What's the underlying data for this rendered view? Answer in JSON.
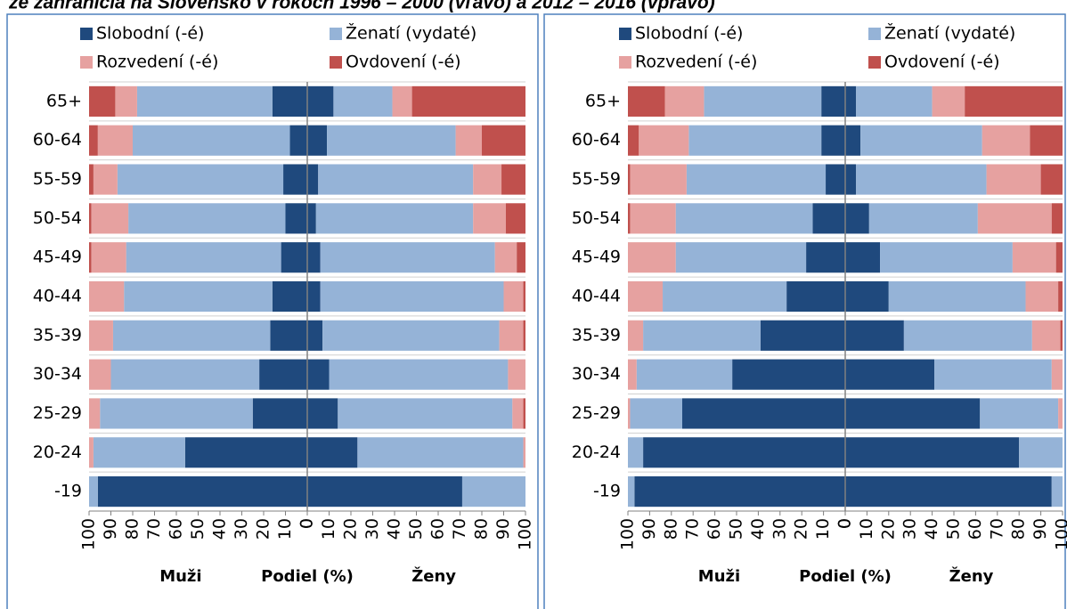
{
  "title": "ze zahraničia na Slovensko v rokoch 1996 – 2000 (vľavo) a 2012 – 2016 (vpravo)",
  "chart_data": [
    {
      "type": "pyramid",
      "xlabel": "Podiel (%)",
      "men_label": "Muži",
      "women_label": "Ženy",
      "categories": [
        "65+",
        "60-64",
        "55-59",
        "50-54",
        "45-49",
        "40-44",
        "35-39",
        "30-34",
        "25-29",
        "20-24",
        "-19"
      ],
      "xlim": [
        0,
        100
      ],
      "xticks": [
        0,
        10,
        20,
        30,
        40,
        50,
        60,
        70,
        80,
        90,
        100
      ],
      "series": [
        {
          "name": "Slobodní (-é)",
          "color": "#1f497d",
          "men": [
            16,
            8,
            11,
            10,
            12,
            16,
            17,
            22,
            25,
            56,
            96
          ],
          "women": [
            12,
            9,
            5,
            4,
            6,
            6,
            7,
            10,
            14,
            23,
            71
          ]
        },
        {
          "name": "Ženatí (vydaté)",
          "color": "#95b3d7",
          "men": [
            62,
            72,
            76,
            72,
            71,
            68,
            72,
            68,
            70,
            42,
            4
          ],
          "women": [
            27,
            59,
            71,
            72,
            80,
            84,
            81,
            82,
            80,
            76,
            29
          ]
        },
        {
          "name": "Rozvedení (-é)",
          "color": "#e6a1a0",
          "men": [
            10,
            16,
            11,
            17,
            16,
            16,
            11,
            10,
            5,
            2,
            0
          ],
          "women": [
            9,
            12,
            13,
            15,
            10,
            9,
            11,
            8,
            5,
            1,
            0
          ]
        },
        {
          "name": "Ovdovení (-é)",
          "color": "#c0504d",
          "men": [
            12,
            4,
            2,
            1,
            1,
            0,
            0,
            0,
            0,
            0,
            0
          ],
          "women": [
            52,
            20,
            11,
            9,
            4,
            1,
            1,
            0,
            1,
            0,
            0
          ]
        }
      ]
    },
    {
      "type": "pyramid",
      "xlabel": "Podiel (%)",
      "men_label": "Muži",
      "women_label": "Ženy",
      "categories": [
        "65+",
        "60-64",
        "55-59",
        "50-54",
        "45-49",
        "40-44",
        "35-39",
        "30-34",
        "25-29",
        "20-24",
        "-19"
      ],
      "xlim": [
        0,
        100
      ],
      "xticks": [
        0,
        10,
        20,
        30,
        40,
        50,
        60,
        70,
        80,
        90,
        100
      ],
      "series": [
        {
          "name": "Slobodní (-é)",
          "color": "#1f497d",
          "men": [
            11,
            11,
            9,
            15,
            18,
            27,
            39,
            52,
            75,
            93,
            97
          ],
          "women": [
            5,
            7,
            5,
            11,
            16,
            20,
            27,
            41,
            62,
            80,
            95
          ]
        },
        {
          "name": "Ženatí (vydaté)",
          "color": "#95b3d7",
          "men": [
            54,
            61,
            64,
            63,
            60,
            57,
            54,
            44,
            24,
            7,
            3
          ],
          "women": [
            35,
            56,
            60,
            50,
            61,
            63,
            59,
            54,
            36,
            20,
            5
          ]
        },
        {
          "name": "Rozvedení (-é)",
          "color": "#e6a1a0",
          "men": [
            18,
            23,
            26,
            21,
            22,
            16,
            7,
            4,
            1,
            0,
            0
          ],
          "women": [
            15,
            22,
            25,
            34,
            20,
            15,
            13,
            5,
            2,
            0,
            0
          ]
        },
        {
          "name": "Ovdovení (-é)",
          "color": "#c0504d",
          "men": [
            17,
            5,
            1,
            1,
            0,
            0,
            0,
            0,
            0,
            0,
            0
          ],
          "women": [
            45,
            15,
            10,
            5,
            3,
            2,
            1,
            0,
            0,
            0,
            0
          ]
        }
      ]
    }
  ]
}
